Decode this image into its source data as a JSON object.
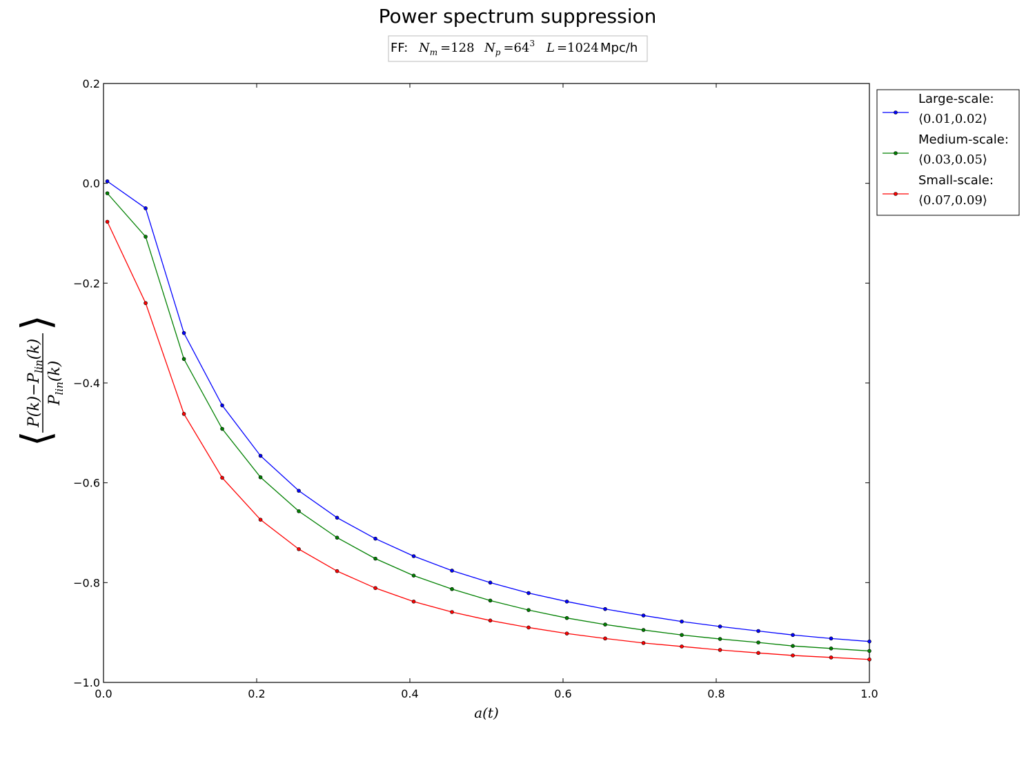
{
  "chart_data": {
    "type": "line",
    "title": "Power spectrum suppression",
    "info_box": {
      "prefix": "FF:",
      "nm_label": "N",
      "nm_sub": "m",
      "nm_value": "=128",
      "np_label": "N",
      "np_sub": "p",
      "np_value": "=64",
      "np_exp": "3",
      "l_label": "L",
      "l_value": "=1024",
      "l_unit": "Mpc/h"
    },
    "xlabel": "a(t)",
    "ylabel": {
      "numerator": "P(k)−P",
      "numerator_sub": "lin",
      "numerator_end": "(k)",
      "denominator": "P",
      "denominator_sub": "lin",
      "denominator_end": "(k)"
    },
    "xlim": [
      0.0,
      1.0
    ],
    "ylim": [
      -1.0,
      0.2
    ],
    "xticks": [
      0.0,
      0.2,
      0.4,
      0.6,
      0.8,
      1.0
    ],
    "xtick_labels": [
      "0.0",
      "0.2",
      "0.4",
      "0.6",
      "0.8",
      "1.0"
    ],
    "yticks": [
      0.2,
      0.0,
      -0.2,
      -0.4,
      -0.6,
      -0.8,
      -1.0
    ],
    "ytick_labels": [
      "0.2",
      "0.0",
      "−0.2",
      "−0.4",
      "−0.6",
      "−0.8",
      "−1.0"
    ],
    "grid": false,
    "legend_placement": "outside-top-right",
    "x": [
      0.005,
      0.055,
      0.105,
      0.155,
      0.205,
      0.255,
      0.305,
      0.355,
      0.405,
      0.455,
      0.505,
      0.555,
      0.605,
      0.655,
      0.705,
      0.755,
      0.805,
      0.855,
      0.9,
      0.95,
      1.0
    ],
    "series": [
      {
        "name": "Large-scale:",
        "range_label": "⟨0.01,0.02⟩",
        "color": "#0000ff",
        "values": [
          0.004,
          -0.05,
          -0.3,
          -0.445,
          -0.546,
          -0.616,
          -0.67,
          -0.712,
          -0.747,
          -0.776,
          -0.8,
          -0.821,
          -0.838,
          -0.853,
          -0.866,
          -0.878,
          -0.888,
          -0.897,
          -0.905,
          -0.912,
          -0.918
        ]
      },
      {
        "name": "Medium-scale:",
        "range_label": "⟨0.03,0.05⟩",
        "color": "#008000",
        "values": [
          -0.02,
          -0.107,
          -0.352,
          -0.492,
          -0.589,
          -0.657,
          -0.71,
          -0.752,
          -0.786,
          -0.813,
          -0.836,
          -0.855,
          -0.871,
          -0.884,
          -0.895,
          -0.905,
          -0.913,
          -0.92,
          -0.927,
          -0.932,
          -0.937
        ]
      },
      {
        "name": "Small-scale:",
        "range_label": "⟨0.07,0.09⟩",
        "color": "#ff0000",
        "values": [
          -0.077,
          -0.24,
          -0.462,
          -0.59,
          -0.674,
          -0.733,
          -0.777,
          -0.811,
          -0.838,
          -0.859,
          -0.876,
          -0.89,
          -0.902,
          -0.912,
          -0.921,
          -0.928,
          -0.935,
          -0.941,
          -0.946,
          -0.95,
          -0.954
        ]
      }
    ]
  }
}
